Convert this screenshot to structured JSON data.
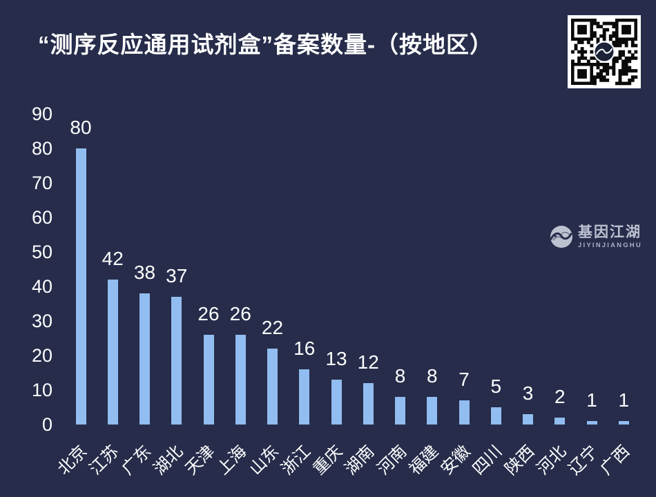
{
  "colors": {
    "background": "#262c4a",
    "bar": "#92bdf0",
    "text": "#ffffff",
    "watermark_text": "#c9cfdc"
  },
  "watermark": {
    "name": "基因江湖",
    "subtitle": "JIYINJIANGHU"
  },
  "chart_data": {
    "type": "bar",
    "title": "“测序反应通用试剂盒”备案数量-（按地区）",
    "categories": [
      "北京",
      "江苏",
      "广东",
      "湖北",
      "天津",
      "上海",
      "山东",
      "浙江",
      "重庆",
      "湖南",
      "河南",
      "福建",
      "安徽",
      "四川",
      "陕西",
      "河北",
      "辽宁",
      "广西"
    ],
    "values": [
      80,
      42,
      38,
      37,
      26,
      26,
      22,
      16,
      13,
      12,
      8,
      8,
      7,
      5,
      3,
      2,
      1,
      1
    ],
    "xlabel": "",
    "ylabel": "",
    "ylim": [
      0,
      90
    ],
    "yticks": [
      0,
      10,
      20,
      30,
      40,
      50,
      60,
      70,
      80,
      90
    ],
    "grid": false,
    "legend": false,
    "value_labels": true,
    "x_label_rotation": 45
  }
}
